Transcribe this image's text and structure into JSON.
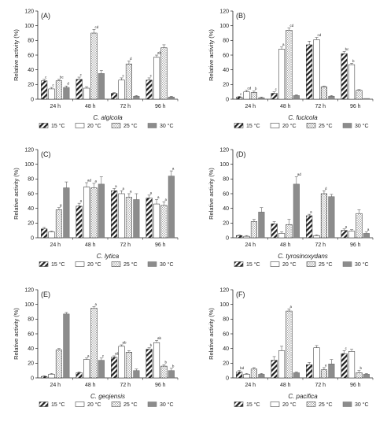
{
  "figure": {
    "ylabel": "Relative activity (%)",
    "groups": [
      "24 h",
      "48 h",
      "72 h",
      "96 h"
    ],
    "legend": [
      "15 °C",
      "20 °C",
      "25 °C",
      "30 °C"
    ],
    "yticks": [
      "0",
      "20",
      "40",
      "60",
      "80",
      "100",
      "120"
    ]
  },
  "chart_data": [
    {
      "type": "bar",
      "panel": "(A)",
      "title": "C. algicola",
      "categories": [
        "24 h",
        "48 h",
        "72 h",
        "96 h"
      ],
      "ylim": [
        0,
        120
      ],
      "series": [
        {
          "name": "15 °C",
          "values": [
            25,
            27,
            8,
            26
          ],
          "err": [
            2,
            3,
            1,
            3
          ],
          "sig": [
            "c",
            "c",
            "",
            "c"
          ]
        },
        {
          "name": "20 °C",
          "values": [
            14,
            15,
            26,
            57
          ],
          "err": [
            2,
            2,
            3,
            3
          ],
          "sig": [
            "c",
            "",
            "c",
            "abc"
          ]
        },
        {
          "name": "25 °C",
          "values": [
            25,
            90,
            48,
            70
          ],
          "err": [
            2,
            5,
            4,
            4
          ],
          "sig": [
            "bc",
            "cd",
            "d",
            ""
          ]
        },
        {
          "name": "30 °C",
          "values": [
            16,
            35,
            4,
            3
          ],
          "err": [
            2,
            4,
            1,
            1
          ],
          "sig": [
            "d",
            "",
            "",
            ""
          ]
        }
      ]
    },
    {
      "type": "bar",
      "panel": "(B)",
      "title": "C. fucicola",
      "categories": [
        "24 h",
        "48 h",
        "72 h",
        "96 h"
      ],
      "ylim": [
        0,
        120
      ],
      "series": [
        {
          "name": "15 °C",
          "values": [
            3,
            8,
            74,
            62
          ],
          "err": [
            1,
            2,
            5,
            3
          ],
          "sig": [
            "c",
            "c",
            "",
            "bc"
          ]
        },
        {
          "name": "20 °C",
          "values": [
            10,
            68,
            81,
            47
          ],
          "err": [
            2,
            3,
            3,
            2
          ],
          "sig": [
            "cd",
            "a",
            "cd",
            "b"
          ]
        },
        {
          "name": "25 °C",
          "values": [
            9,
            94,
            17,
            12
          ],
          "err": [
            2,
            3,
            1,
            1
          ],
          "sig": [
            "b",
            "cd",
            "",
            ""
          ]
        },
        {
          "name": "30 °C",
          "values": [
            2,
            5,
            4,
            1
          ],
          "err": [
            1,
            1,
            1,
            0
          ],
          "sig": [
            "",
            "",
            "",
            ""
          ]
        }
      ]
    },
    {
      "type": "bar",
      "panel": "(C)",
      "title": "C. lytica",
      "categories": [
        "24 h",
        "48 h",
        "72 h",
        "96 h"
      ],
      "ylim": [
        0,
        120
      ],
      "series": [
        {
          "name": "15 °C",
          "values": [
            12,
            43,
            64,
            54
          ],
          "err": [
            2,
            4,
            3,
            4
          ],
          "sig": [
            "",
            "a",
            "a",
            "a"
          ]
        },
        {
          "name": "20 °C",
          "values": [
            8,
            69,
            60,
            46
          ],
          "err": [
            1,
            6,
            4,
            6
          ],
          "sig": [
            "",
            "ad",
            "a",
            "a"
          ]
        },
        {
          "name": "25 °C",
          "values": [
            38,
            68,
            55,
            44
          ],
          "err": [
            3,
            6,
            5,
            5
          ],
          "sig": [
            "g",
            "a",
            "a",
            "a"
          ]
        },
        {
          "name": "30 °C",
          "values": [
            68,
            73,
            52,
            84
          ],
          "err": [
            8,
            10,
            8,
            7
          ],
          "sig": [
            "",
            "",
            "",
            "a"
          ]
        }
      ]
    },
    {
      "type": "bar",
      "panel": "(D)",
      "title": "C. tyrosinoxydans",
      "categories": [
        "24 h",
        "48 h",
        "72 h",
        "96 h"
      ],
      "ylim": [
        0,
        120
      ],
      "series": [
        {
          "name": "15 °C",
          "values": [
            3,
            19,
            30,
            10
          ],
          "err": [
            1,
            3,
            2,
            2
          ],
          "sig": [
            "",
            "",
            "a",
            "a"
          ]
        },
        {
          "name": "20 °C",
          "values": [
            2,
            6,
            3,
            9
          ],
          "err": [
            1,
            2,
            1,
            2
          ],
          "sig": [
            "",
            "",
            "",
            ""
          ]
        },
        {
          "name": "25 °C",
          "values": [
            22,
            18,
            60,
            33
          ],
          "err": [
            3,
            7,
            4,
            5
          ],
          "sig": [
            "",
            "",
            "d",
            ""
          ]
        },
        {
          "name": "30 °C",
          "values": [
            35,
            73,
            56,
            6
          ],
          "err": [
            6,
            10,
            3,
            2
          ],
          "sig": [
            "",
            "ad",
            "",
            "a"
          ]
        }
      ]
    },
    {
      "type": "bar",
      "panel": "(E)",
      "title": "C. geojensis",
      "categories": [
        "24 h",
        "48 h",
        "72 h",
        "96 h"
      ],
      "ylim": [
        0,
        120
      ],
      "series": [
        {
          "name": "15 °C",
          "values": [
            2,
            7,
            28,
            39
          ],
          "err": [
            1,
            1,
            2,
            2
          ],
          "sig": [
            "",
            "",
            "ab",
            "b"
          ]
        },
        {
          "name": "20 °C",
          "values": [
            5,
            25,
            43,
            48
          ],
          "err": [
            1,
            2,
            2,
            3
          ],
          "sig": [
            "",
            "a",
            "ab",
            "ab"
          ]
        },
        {
          "name": "25 °C",
          "values": [
            38,
            95,
            35,
            16
          ],
          "err": [
            2,
            2,
            2,
            2
          ],
          "sig": [
            "",
            "a",
            "",
            "b"
          ]
        },
        {
          "name": "30 °C",
          "values": [
            87,
            24,
            10,
            10
          ],
          "err": [
            2,
            3,
            2,
            3
          ],
          "sig": [
            "",
            "c",
            "",
            "b"
          ]
        }
      ]
    },
    {
      "type": "bar",
      "panel": "(F)",
      "title": "C. pacifica",
      "categories": [
        "24 h",
        "48 h",
        "72 h",
        "96 h"
      ],
      "ylim": [
        0,
        120
      ],
      "series": [
        {
          "name": "15 °C",
          "values": [
            8,
            24,
            18,
            33
          ],
          "err": [
            2,
            5,
            3,
            4
          ],
          "sig": [
            "bd",
            "",
            "",
            "c"
          ]
        },
        {
          "name": "20 °C",
          "values": [
            5,
            37,
            41,
            36
          ],
          "err": [
            1,
            6,
            3,
            3
          ],
          "sig": [
            "",
            "",
            "",
            ""
          ]
        },
        {
          "name": "25 °C",
          "values": [
            12,
            91,
            11,
            7
          ],
          "err": [
            2,
            3,
            3,
            3
          ],
          "sig": [
            "",
            "a",
            "e",
            "b"
          ]
        },
        {
          "name": "30 °C",
          "values": [
            5,
            7,
            19,
            5
          ],
          "err": [
            1,
            1,
            6,
            1
          ],
          "sig": [
            "",
            "",
            "",
            ""
          ]
        }
      ]
    }
  ]
}
